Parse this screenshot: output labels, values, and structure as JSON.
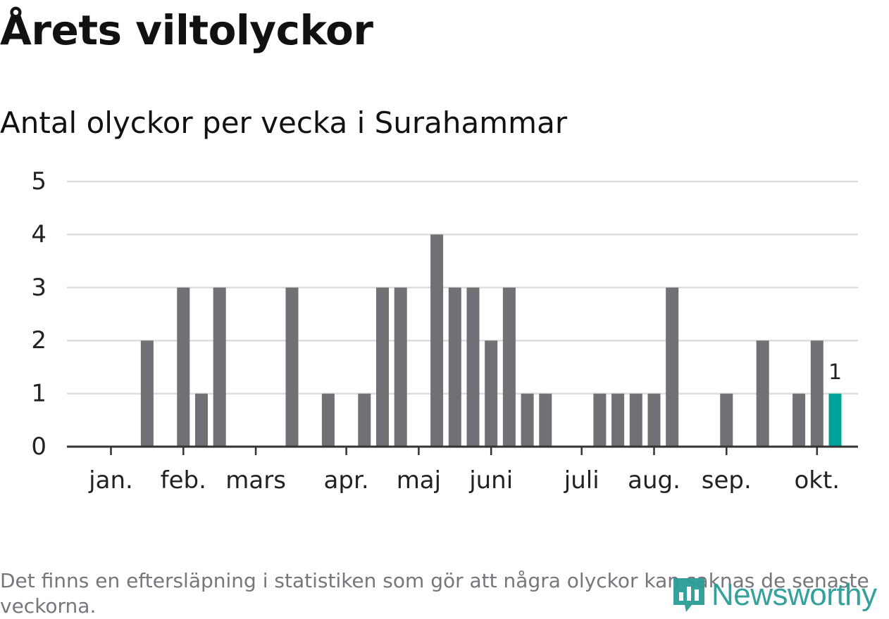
{
  "header": {
    "title": "Årets viltolyckor",
    "subtitle": "Antal olyckor per vecka i Surahammar"
  },
  "footer": {
    "note": "Det finns en eftersläpning i statistiken som gör att några olyckor kan saknas de senaste veckorna.",
    "brand": "Newsworthy"
  },
  "colors": {
    "bar": "#707075",
    "highlight": "#00a39a",
    "grid": "#dddddd",
    "axis": "#333333",
    "text": "#222222",
    "brand": "#2a9d96"
  },
  "chart_data": {
    "type": "bar",
    "title": "Antal olyckor per vecka i Surahammar",
    "xlabel": "",
    "ylabel": "",
    "ylim": [
      0,
      5
    ],
    "yticks": [
      0,
      1,
      2,
      3,
      4,
      5
    ],
    "weeks": [
      1,
      2,
      3,
      4,
      5,
      6,
      7,
      8,
      9,
      10,
      11,
      12,
      13,
      14,
      15,
      16,
      17,
      18,
      19,
      20,
      21,
      22,
      23,
      24,
      25,
      26,
      27,
      28,
      29,
      30,
      31,
      32,
      33,
      34,
      35,
      36,
      37,
      38,
      39,
      40,
      41
    ],
    "values": [
      0,
      0,
      2,
      0,
      3,
      1,
      3,
      0,
      0,
      0,
      3,
      0,
      1,
      0,
      1,
      3,
      3,
      0,
      4,
      3,
      3,
      2,
      3,
      1,
      1,
      0,
      0,
      1,
      1,
      1,
      1,
      3,
      0,
      0,
      1,
      0,
      2,
      0,
      1,
      2,
      1
    ],
    "highlight_week": 41,
    "highlight_label": "1",
    "month_ticks": [
      {
        "label": "jan.",
        "week": 1
      },
      {
        "label": "feb.",
        "week": 5
      },
      {
        "label": "mars",
        "week": 9
      },
      {
        "label": "apr.",
        "week": 14
      },
      {
        "label": "maj",
        "week": 18
      },
      {
        "label": "juni",
        "week": 22
      },
      {
        "label": "juli",
        "week": 27
      },
      {
        "label": "aug.",
        "week": 31
      },
      {
        "label": "sep.",
        "week": 35
      },
      {
        "label": "okt.",
        "week": 40
      }
    ]
  }
}
